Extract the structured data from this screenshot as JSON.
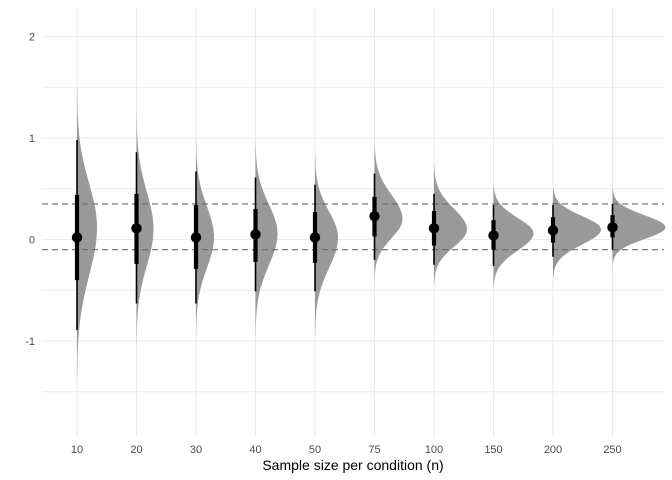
{
  "chart_data": {
    "type": "halfeye",
    "title": "",
    "xlabel": "Sample size per condition (n)",
    "ylabel": "",
    "categories": [
      "10",
      "20",
      "30",
      "40",
      "50",
      "75",
      "100",
      "150",
      "200",
      "250"
    ],
    "ylim": [
      -1.95,
      2.25
    ],
    "y_ticks": [
      -1,
      0,
      1,
      2
    ],
    "y_tick_labels": [
      "-1",
      "0",
      "1",
      "2"
    ],
    "grid": true,
    "legend": null,
    "reference_lines": [
      {
        "y": 0.35,
        "style": "dashed",
        "color": "#6b6b6b"
      },
      {
        "y": -0.1,
        "style": "dashed",
        "color": "#6b6b6b"
      }
    ],
    "fill_color": "#999999",
    "series": [
      {
        "n": "10",
        "point": 0.02,
        "interval_66": [
          -0.4,
          0.44
        ],
        "interval_95": [
          -0.89,
          0.98
        ],
        "density_range": [
          -1.4,
          1.5
        ],
        "density_mode": 0.12,
        "density_width": 20
      },
      {
        "n": "20",
        "point": 0.11,
        "interval_66": [
          -0.24,
          0.45
        ],
        "interval_95": [
          -0.63,
          0.86
        ],
        "density_range": [
          -1.05,
          1.28
        ],
        "density_mode": 0.1,
        "density_width": 17
      },
      {
        "n": "30",
        "point": 0.02,
        "interval_66": [
          -0.29,
          0.34
        ],
        "interval_95": [
          -0.63,
          0.67
        ],
        "density_range": [
          -0.95,
          1.0
        ],
        "density_mode": 0.02,
        "density_width": 18
      },
      {
        "n": "40",
        "point": 0.05,
        "interval_66": [
          -0.22,
          0.3
        ],
        "interval_95": [
          -0.51,
          0.61
        ],
        "density_range": [
          -0.95,
          0.98
        ],
        "density_mode": 0.06,
        "density_width": 22
      },
      {
        "n": "50",
        "point": 0.02,
        "interval_66": [
          -0.23,
          0.27
        ],
        "interval_95": [
          -0.51,
          0.54
        ],
        "density_range": [
          -0.95,
          0.85
        ],
        "density_mode": 0.02,
        "density_width": 23
      },
      {
        "n": "75",
        "point": 0.23,
        "interval_66": [
          0.03,
          0.42
        ],
        "interval_95": [
          -0.2,
          0.65
        ],
        "density_range": [
          -0.4,
          0.97
        ],
        "density_mode": 0.2,
        "density_width": 28
      },
      {
        "n": "100",
        "point": 0.11,
        "interval_66": [
          -0.06,
          0.28
        ],
        "interval_95": [
          -0.25,
          0.45
        ],
        "density_range": [
          -0.45,
          0.75
        ],
        "density_mode": 0.1,
        "density_width": 33
      },
      {
        "n": "150",
        "point": 0.04,
        "interval_66": [
          -0.1,
          0.19
        ],
        "interval_95": [
          -0.26,
          0.34
        ],
        "density_range": [
          -0.48,
          0.55
        ],
        "density_mode": 0.06,
        "density_width": 40
      },
      {
        "n": "200",
        "point": 0.09,
        "interval_66": [
          -0.03,
          0.22
        ],
        "interval_95": [
          -0.17,
          0.34
        ],
        "density_range": [
          -0.38,
          0.52
        ],
        "density_mode": 0.1,
        "density_width": 48
      },
      {
        "n": "250",
        "point": 0.12,
        "interval_66": [
          0.02,
          0.24
        ],
        "interval_95": [
          -0.1,
          0.35
        ],
        "density_range": [
          -0.25,
          0.5
        ],
        "density_mode": 0.12,
        "density_width": 53
      }
    ]
  }
}
